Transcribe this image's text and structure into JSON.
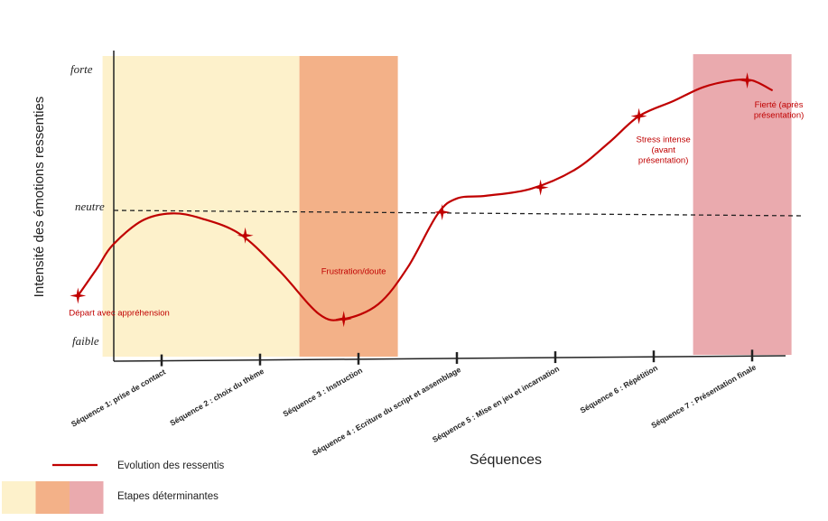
{
  "chart_data": {
    "type": "line",
    "ylabel": "Intensité des émotions ressenties",
    "xlabel": "Séquences",
    "y_levels": [
      "forte",
      "neutre",
      "faible"
    ],
    "categories": [
      "Séquence 1: prise de contact",
      "Séquence 2 : choix du thème",
      "Séquence 3 : Instruction",
      "Séquence 4 : Ecriture du script et assemblage",
      "Séquence 5 : Mise en jeu et incarnation",
      "Séquence 6 : Répétition",
      "Séquence 7 : Présentation finale"
    ],
    "series": [
      {
        "name": "Evolution des ressentis",
        "color": "#c00000",
        "curve": [
          [
            0.15,
            -0.68
          ],
          [
            0.35,
            -0.45
          ],
          [
            0.5,
            -0.27
          ],
          [
            0.8,
            -0.07
          ],
          [
            1.1,
            -0.01
          ],
          [
            1.4,
            -0.05
          ],
          [
            1.8,
            -0.18
          ],
          [
            2.2,
            -0.48
          ],
          [
            2.6,
            -0.83
          ],
          [
            2.85,
            -0.87
          ],
          [
            3.2,
            -0.75
          ],
          [
            3.5,
            -0.45
          ],
          [
            3.8,
            -0.02
          ],
          [
            4.0,
            0.1
          ],
          [
            4.3,
            0.12
          ],
          [
            4.75,
            0.17
          ],
          [
            5.2,
            0.31
          ],
          [
            5.55,
            0.51
          ],
          [
            5.85,
            0.7
          ],
          [
            6.2,
            0.81
          ],
          [
            6.5,
            0.91
          ],
          [
            6.8,
            0.96
          ],
          [
            7.0,
            0.96
          ],
          [
            7.2,
            0.89
          ]
        ],
        "markers": [
          {
            "x": 0.15,
            "y": -0.68,
            "label": "Départ avec appréhension"
          },
          {
            "x": 1.85,
            "y": -0.19,
            "label": ""
          },
          {
            "x": 2.85,
            "y": -0.87,
            "label": "Frustration/doute"
          },
          {
            "x": 3.85,
            "y": 0.0,
            "label": ""
          },
          {
            "x": 4.85,
            "y": 0.18,
            "label": ""
          },
          {
            "x": 5.85,
            "y": 0.7,
            "label": "Stress intense (avant présentation)"
          },
          {
            "x": 6.95,
            "y": 0.96,
            "label": "Fierté (après présentation)"
          }
        ]
      }
    ],
    "regions": [
      {
        "x0": 0.4,
        "x1": 2.4,
        "color": "#fdf1cb"
      },
      {
        "x0": 2.4,
        "x1": 3.4,
        "color": "#f3b188"
      },
      {
        "x0": 6.4,
        "x1": 7.4,
        "color": "#eaaaae"
      }
    ],
    "neutral_line": "dashed",
    "legend": {
      "position": "bottom-left",
      "line_label": "Evolution des ressentis",
      "regions_label": "Etapes déterminantes"
    }
  }
}
